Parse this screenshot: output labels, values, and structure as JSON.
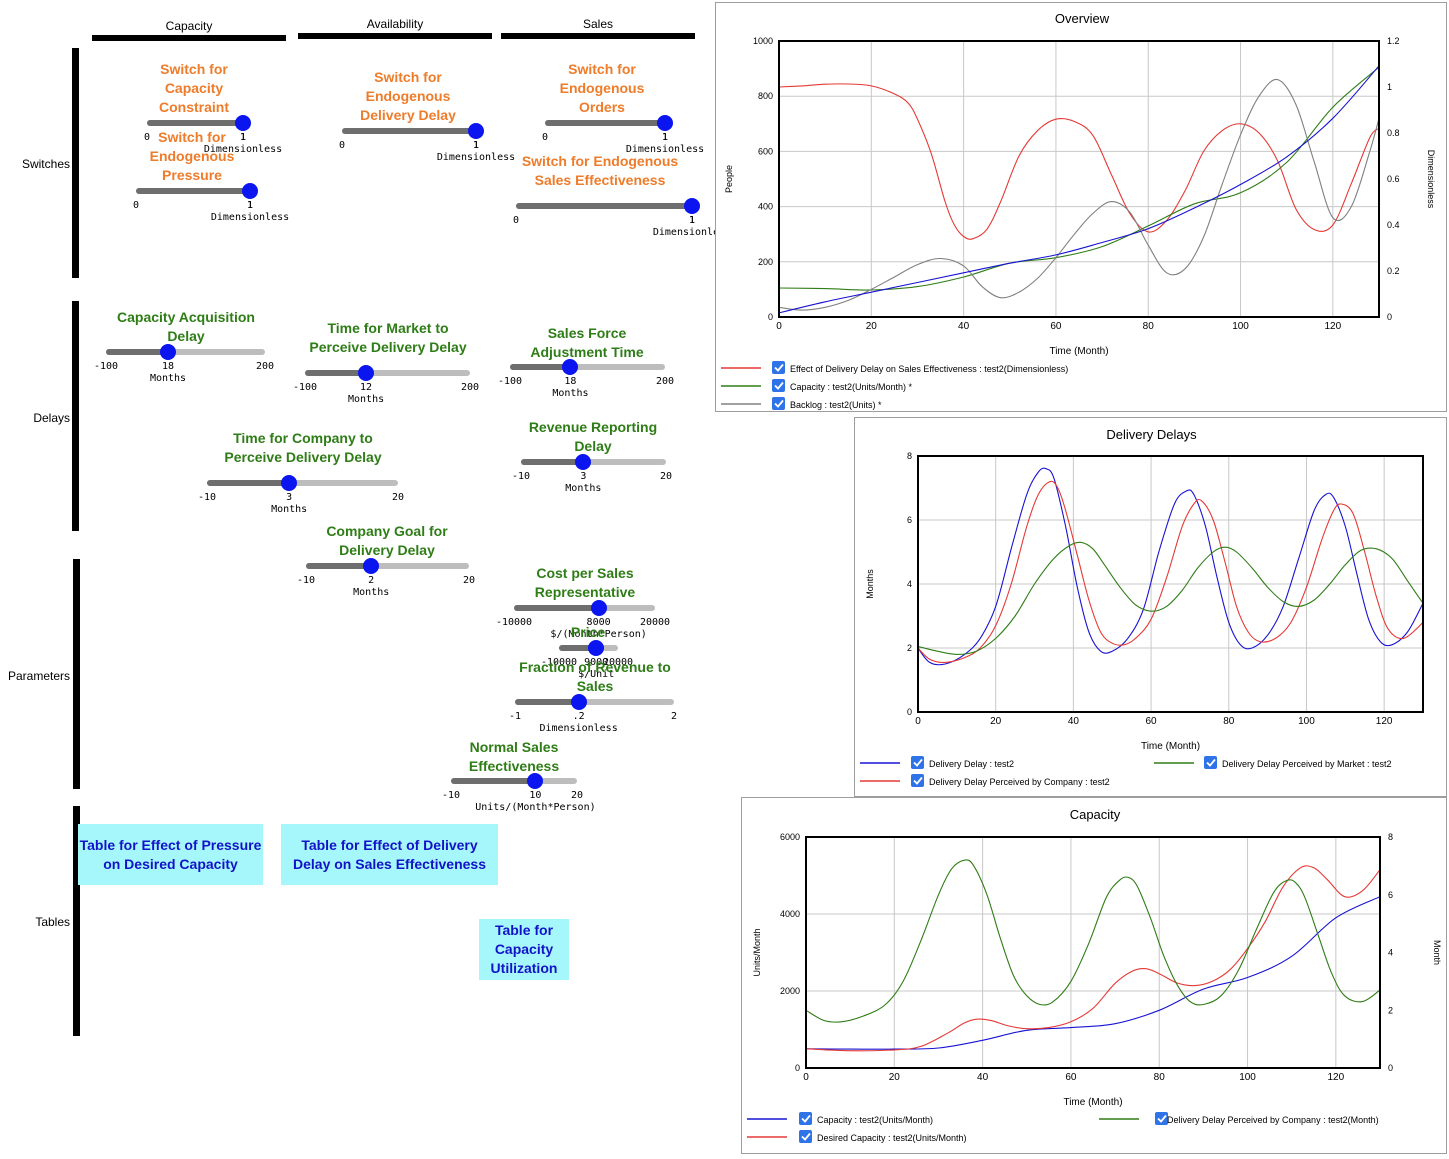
{
  "columns": [
    {
      "label": "Capacity"
    },
    {
      "label": "Availability"
    },
    {
      "label": "Sales"
    }
  ],
  "rows": [
    {
      "label": "Switches"
    },
    {
      "label": "Delays"
    },
    {
      "label": "Parameters"
    },
    {
      "label": "Tables"
    }
  ],
  "controls": [
    {
      "name": "switch-capacity-constraint",
      "color": "orange",
      "title": "Switch for\nCapacity\nConstraint",
      "min": "0",
      "mid": "1",
      "max": "1",
      "value_fraction": 1.0,
      "unit": "Dimensionless"
    },
    {
      "name": "switch-endogenous-pressure",
      "color": "orange",
      "title": "Switch for\nEndogenous\nPressure",
      "min": "0",
      "mid": "1",
      "max": "1",
      "value_fraction": 1.0,
      "unit": "Dimensionless"
    },
    {
      "name": "switch-endogenous-delivery-delay",
      "color": "orange",
      "title": "Switch for\nEndogenous\nDelivery Delay",
      "min": "0",
      "mid": "1",
      "max": "1",
      "value_fraction": 1.0,
      "unit": "Dimensionless"
    },
    {
      "name": "switch-endogenous-orders",
      "color": "orange",
      "title": "Switch for\nEndogenous\nOrders",
      "min": "0",
      "mid": "1",
      "max": "1",
      "value_fraction": 1.0,
      "unit": "Dimensionless"
    },
    {
      "name": "switch-endogenous-sales-effectiveness",
      "color": "orange",
      "title": "Switch for Endogenous\nSales Effectiveness",
      "min": "0",
      "mid": "1",
      "max": "1",
      "value_fraction": 1.0,
      "unit": "Dimensionless"
    },
    {
      "name": "capacity-acquisition-delay",
      "color": "green",
      "title": "Capacity Acquisition\nDelay",
      "min": "-100",
      "mid": "18",
      "max": "200",
      "value_fraction": 0.39,
      "unit": "Months"
    },
    {
      "name": "time-market-perceive-delivery-delay",
      "color": "green",
      "title": "Time for Market to\nPerceive Delivery Delay",
      "min": "-100",
      "mid": "12",
      "max": "200",
      "value_fraction": 0.37,
      "unit": "Months"
    },
    {
      "name": "sales-force-adjustment-time",
      "color": "green",
      "title": "Sales Force\nAdjustment Time",
      "min": "-100",
      "mid": "18",
      "max": "200",
      "value_fraction": 0.39,
      "unit": "Months"
    },
    {
      "name": "time-company-perceive-delivery-delay",
      "color": "green",
      "title": "Time for Company to\nPerceive Delivery Delay",
      "min": "-10",
      "mid": "3",
      "max": "20",
      "value_fraction": 0.43,
      "unit": "Months"
    },
    {
      "name": "revenue-reporting-delay",
      "color": "green",
      "title": "Revenue Reporting\nDelay",
      "min": "-10",
      "mid": "3",
      "max": "20",
      "value_fraction": 0.43,
      "unit": "Months"
    },
    {
      "name": "company-goal-delivery-delay",
      "color": "green",
      "title": "Company Goal for\nDelivery Delay",
      "min": "-10",
      "mid": "2",
      "max": "20",
      "value_fraction": 0.4,
      "unit": "Months"
    },
    {
      "name": "cost-per-sales-representative",
      "color": "green",
      "title": "Cost per Sales\nRepresentative",
      "min": "-10000",
      "mid": "8000",
      "max": "20000",
      "value_fraction": 0.6,
      "unit": "$/(Month*Person)"
    },
    {
      "name": "price",
      "color": "green",
      "title": "Price",
      "min": "-10000",
      "mid": "9000",
      "max": "20000",
      "value_fraction": 0.63,
      "unit": "$/Unit"
    },
    {
      "name": "fraction-revenue-to-sales",
      "color": "green",
      "title": "Fraction of Revenue to\nSales",
      "min": "-1",
      "mid": ".2",
      "max": "2",
      "value_fraction": 0.4,
      "unit": "Dimensionless"
    },
    {
      "name": "normal-sales-effectiveness",
      "color": "green",
      "title": "Normal Sales\nEffectiveness",
      "min": "-10",
      "mid": "10",
      "max": "20",
      "value_fraction": 0.67,
      "unit": "Units/(Month*Person)"
    }
  ],
  "tables": [
    {
      "name": "table-effect-pressure-desired-capacity",
      "label": "Table for Effect of Pressure\non Desired Capacity"
    },
    {
      "name": "table-effect-delivery-delay-sales-effectiveness",
      "label": "Table for Effect of Delivery\nDelay on Sales Effectiveness"
    },
    {
      "name": "table-capacity-utilization",
      "label": "Table for\nCapacity\nUtilization"
    }
  ],
  "chart_data": [
    {
      "name": "overview-chart",
      "type": "line",
      "title": "Overview",
      "xlabel": "Time (Month)",
      "ylabel_left": "People",
      "ylabel_right": "Dimensionless",
      "xlim": [
        0,
        130
      ],
      "ylim_left": [
        0,
        1000
      ],
      "ylim_right": [
        0,
        1.2
      ],
      "xticks": [
        "0",
        "20",
        "40",
        "60",
        "80",
        "100",
        "120"
      ],
      "yticks_left": [
        "0",
        "200",
        "400",
        "600",
        "800",
        "1000"
      ],
      "yticks_right": [
        "0",
        "0.2",
        "0.4",
        "0.6",
        "0.8",
        "1",
        "1.2"
      ],
      "grid": true,
      "series": [
        {
          "axis": "right",
          "color": "#e53935",
          "x": [
            0,
            5,
            10,
            15,
            20,
            25,
            28,
            30,
            33,
            36,
            38,
            40,
            42,
            45,
            48,
            52,
            56,
            60,
            64,
            68,
            72,
            76,
            80,
            84,
            88,
            92,
            96,
            100,
            104,
            108,
            112,
            116,
            120,
            124,
            128,
            130
          ],
          "y": [
            1.0,
            1.005,
            1.012,
            1.013,
            1.005,
            0.97,
            0.93,
            0.86,
            0.71,
            0.5,
            0.4,
            0.35,
            0.34,
            0.38,
            0.5,
            0.7,
            0.81,
            0.86,
            0.85,
            0.79,
            0.62,
            0.45,
            0.37,
            0.42,
            0.55,
            0.72,
            0.81,
            0.84,
            0.8,
            0.68,
            0.47,
            0.38,
            0.4,
            0.58,
            0.78,
            0.82
          ]
        },
        {
          "axis": "left",
          "color": "#2e7d16",
          "x": [
            0,
            10,
            20,
            30,
            40,
            50,
            60,
            70,
            80,
            90,
            100,
            110,
            120,
            130
          ],
          "y": [
            105,
            103,
            98,
            110,
            145,
            195,
            215,
            255,
            330,
            410,
            450,
            560,
            760,
            905
          ]
        },
        {
          "axis": "left",
          "color": "#808080",
          "x": [
            0,
            5,
            10,
            15,
            20,
            25,
            30,
            35,
            40,
            44,
            48,
            52,
            56,
            60,
            64,
            68,
            72,
            76,
            80,
            84,
            88,
            92,
            96,
            100,
            104,
            108,
            112,
            116,
            120,
            124,
            128,
            130
          ],
          "y": [
            35,
            25,
            35,
            60,
            100,
            145,
            190,
            212,
            185,
            110,
            70,
            90,
            140,
            215,
            300,
            375,
            418,
            380,
            260,
            160,
            175,
            290,
            480,
            660,
            800,
            860,
            770,
            560,
            360,
            400,
            600,
            720
          ]
        },
        {
          "axis": "left",
          "color": "#1813d3",
          "x": [
            0,
            10,
            20,
            30,
            40,
            50,
            60,
            70,
            80,
            90,
            100,
            110,
            120,
            130
          ],
          "y": [
            15,
            55,
            90,
            125,
            160,
            195,
            225,
            270,
            320,
            395,
            480,
            580,
            720,
            910
          ]
        }
      ],
      "legend": [
        {
          "color": "#e53935",
          "label": "Effect of Delivery Delay on Sales Effectiveness : test2(Dimensionless)"
        },
        {
          "color": "#2e7d16",
          "label": "Capacity : test2(Units/Month)  *"
        },
        {
          "color": "#808080",
          "label": "Backlog : test2(Units)  *"
        }
      ]
    },
    {
      "name": "delivery-delays-chart",
      "type": "line",
      "title": "Delivery Delays",
      "xlabel": "Time (Month)",
      "ylabel_left": "Months",
      "xlim": [
        0,
        130
      ],
      "ylim_left": [
        0,
        8
      ],
      "xticks": [
        "0",
        "20",
        "40",
        "60",
        "80",
        "100",
        "120"
      ],
      "yticks_left": [
        "0",
        "2",
        "4",
        "6",
        "8"
      ],
      "grid": true,
      "series": [
        {
          "axis": "left",
          "color": "#1813d3",
          "x": [
            0,
            3,
            7,
            12,
            16,
            20,
            24,
            28,
            31,
            33,
            35,
            38,
            41,
            44,
            47,
            50,
            54,
            58,
            62,
            66,
            69,
            71,
            74,
            77,
            80,
            83,
            86,
            90,
            94,
            98,
            102,
            105,
            107,
            110,
            113,
            116,
            119,
            122,
            126,
            130
          ],
          "y": [
            2.0,
            1.55,
            1.5,
            1.8,
            2.3,
            3.3,
            5.1,
            6.8,
            7.5,
            7.6,
            7.3,
            5.8,
            3.9,
            2.5,
            1.9,
            1.9,
            2.3,
            3.2,
            5.0,
            6.5,
            6.9,
            6.8,
            5.8,
            4.2,
            2.8,
            2.1,
            2.0,
            2.4,
            3.3,
            4.8,
            6.3,
            6.8,
            6.7,
            5.8,
            4.3,
            2.9,
            2.2,
            2.1,
            2.5,
            3.4
          ]
        },
        {
          "axis": "left",
          "color": "#e53935",
          "x": [
            0,
            3,
            7,
            12,
            16,
            20,
            24,
            28,
            31,
            34,
            36,
            38,
            41,
            44,
            47,
            50,
            53,
            56,
            60,
            64,
            68,
            71,
            73,
            76,
            79,
            82,
            85,
            88,
            92,
            96,
            100,
            104,
            107,
            109,
            112,
            115,
            118,
            121,
            125,
            130
          ],
          "y": [
            2.0,
            1.65,
            1.55,
            1.7,
            2.0,
            2.7,
            4.0,
            5.8,
            6.8,
            7.2,
            7.0,
            6.3,
            4.9,
            3.5,
            2.5,
            2.15,
            2.1,
            2.3,
            2.9,
            4.2,
            5.8,
            6.5,
            6.6,
            6.0,
            4.7,
            3.3,
            2.5,
            2.2,
            2.3,
            2.8,
            3.9,
            5.4,
            6.3,
            6.5,
            6.2,
            5.0,
            3.6,
            2.6,
            2.3,
            2.8
          ]
        },
        {
          "axis": "left",
          "color": "#2e7d16",
          "x": [
            0,
            5,
            10,
            15,
            20,
            25,
            30,
            35,
            39,
            42,
            45,
            48,
            52,
            56,
            60,
            64,
            68,
            72,
            76,
            79,
            82,
            86,
            90,
            94,
            98,
            102,
            106,
            110,
            114,
            118,
            122,
            126,
            130
          ],
          "y": [
            2.05,
            1.9,
            1.8,
            1.9,
            2.3,
            3.0,
            4.0,
            4.8,
            5.2,
            5.3,
            5.1,
            4.6,
            3.9,
            3.35,
            3.15,
            3.3,
            3.8,
            4.5,
            5.0,
            5.15,
            5.0,
            4.5,
            3.9,
            3.45,
            3.3,
            3.5,
            4.0,
            4.6,
            5.05,
            5.1,
            4.8,
            4.1,
            3.4
          ]
        }
      ],
      "legend": [
        {
          "color": "#1813d3",
          "label": "Delivery Delay : test2"
        },
        {
          "color": "#2e7d16",
          "label": "Delivery Delay Perceived by Market : test2"
        },
        {
          "color": "#e53935",
          "label": "Delivery Delay Perceived by Company : test2"
        }
      ]
    },
    {
      "name": "capacity-chart",
      "type": "line",
      "title": "Capacity",
      "xlabel": "Time (Month)",
      "ylabel_left": "Units/Month",
      "ylabel_right": "Month",
      "xlim": [
        0,
        130
      ],
      "ylim_left": [
        0,
        6000
      ],
      "ylim_right": [
        0,
        8
      ],
      "xticks": [
        "0",
        "20",
        "40",
        "60",
        "80",
        "100",
        "120"
      ],
      "yticks_left": [
        "0",
        "2000",
        "4000",
        "6000"
      ],
      "yticks_right": [
        "0",
        "2",
        "4",
        "6",
        "8"
      ],
      "grid": true,
      "series": [
        {
          "axis": "left",
          "color": "#1813d3",
          "x": [
            0,
            10,
            20,
            30,
            40,
            50,
            60,
            70,
            80,
            90,
            100,
            110,
            120,
            130
          ],
          "y": [
            500,
            490,
            490,
            520,
            720,
            980,
            1050,
            1150,
            1500,
            2050,
            2350,
            2900,
            3900,
            4450
          ]
        },
        {
          "axis": "left",
          "color": "#e53935",
          "x": [
            0,
            10,
            20,
            26,
            32,
            36,
            39,
            42,
            46,
            50,
            55,
            60,
            65,
            70,
            74,
            77,
            80,
            84,
            88,
            92,
            96,
            100,
            104,
            108,
            112,
            115,
            118,
            122,
            126,
            130
          ],
          "y": [
            500,
            450,
            470,
            560,
            900,
            1180,
            1270,
            1230,
            1090,
            1020,
            1050,
            1200,
            1550,
            2200,
            2520,
            2580,
            2450,
            2210,
            2140,
            2250,
            2550,
            3100,
            3800,
            4700,
            5200,
            5200,
            4900,
            4450,
            4600,
            5150
          ]
        },
        {
          "axis": "right",
          "color": "#2e7d16",
          "x": [
            0,
            4,
            8,
            13,
            18,
            22,
            26,
            30,
            33,
            36,
            38,
            41,
            44,
            47,
            50,
            53,
            56,
            60,
            64,
            68,
            71,
            73,
            75,
            78,
            81,
            84,
            87,
            90,
            94,
            98,
            102,
            106,
            109,
            111,
            113,
            116,
            119,
            122,
            126,
            130
          ],
          "y": [
            2.0,
            1.65,
            1.6,
            1.8,
            2.2,
            3.0,
            4.4,
            6.0,
            6.9,
            7.2,
            7.0,
            6.0,
            4.5,
            3.2,
            2.5,
            2.2,
            2.3,
            3.0,
            4.3,
            5.9,
            6.5,
            6.6,
            6.3,
            5.2,
            3.9,
            2.9,
            2.3,
            2.2,
            2.5,
            3.4,
            4.8,
            6.1,
            6.5,
            6.4,
            5.9,
            4.6,
            3.3,
            2.5,
            2.3,
            2.7
          ]
        }
      ],
      "legend": [
        {
          "color": "#1813d3",
          "label": "Capacity : test2(Units/Month)"
        },
        {
          "color": "#2e7d16",
          "label": "Delivery Delay Perceived by Company : test2(Month)"
        },
        {
          "color": "#e53935",
          "label": "Desired Capacity : test2(Units/Month)"
        }
      ]
    }
  ]
}
